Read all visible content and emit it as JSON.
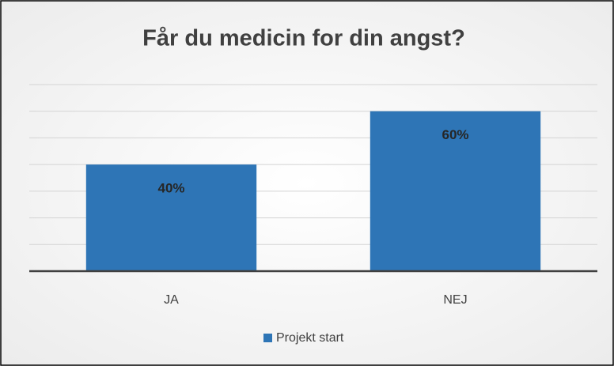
{
  "chart_data": {
    "type": "bar",
    "title": "Får du medicin for din angst?",
    "categories": [
      "JA",
      "NEJ"
    ],
    "series": [
      {
        "name": "Projekt start",
        "color": "#2e75b6",
        "values": [
          40,
          60
        ],
        "value_labels": [
          "40%",
          "60%"
        ]
      }
    ],
    "ylim": [
      0,
      70
    ],
    "yticks": [
      0,
      10,
      20,
      30,
      40,
      50,
      60,
      70
    ],
    "grid": true,
    "legend": "bottom"
  }
}
